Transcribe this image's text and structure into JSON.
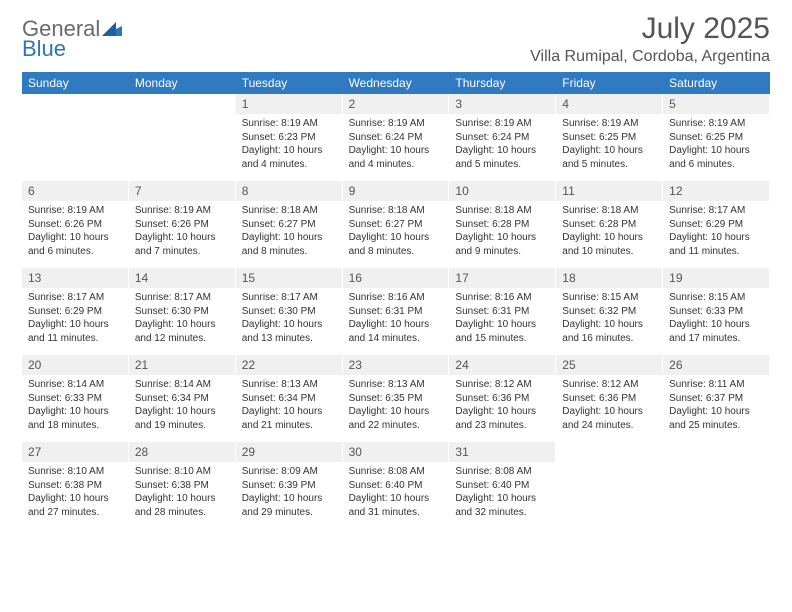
{
  "logo": {
    "general": "General",
    "blue": "Blue"
  },
  "title": "July 2025",
  "location": "Villa Rumipal, Cordoba, Argentina",
  "colors": {
    "header_bg": "#2f7ac0",
    "header_fg": "#ffffff",
    "daynum_bg": "#f0f0f0",
    "daynum_fg": "#555555",
    "text": "#333333",
    "logo_gray": "#6a6a6a",
    "logo_blue": "#2f75b5",
    "page_bg": "#ffffff"
  },
  "day_names": [
    "Sunday",
    "Monday",
    "Tuesday",
    "Wednesday",
    "Thursday",
    "Friday",
    "Saturday"
  ],
  "weeks": [
    [
      {
        "n": "",
        "sunrise": "",
        "sunset": "",
        "daylight": ""
      },
      {
        "n": "",
        "sunrise": "",
        "sunset": "",
        "daylight": ""
      },
      {
        "n": "1",
        "sunrise": "Sunrise: 8:19 AM",
        "sunset": "Sunset: 6:23 PM",
        "daylight": "Daylight: 10 hours and 4 minutes."
      },
      {
        "n": "2",
        "sunrise": "Sunrise: 8:19 AM",
        "sunset": "Sunset: 6:24 PM",
        "daylight": "Daylight: 10 hours and 4 minutes."
      },
      {
        "n": "3",
        "sunrise": "Sunrise: 8:19 AM",
        "sunset": "Sunset: 6:24 PM",
        "daylight": "Daylight: 10 hours and 5 minutes."
      },
      {
        "n": "4",
        "sunrise": "Sunrise: 8:19 AM",
        "sunset": "Sunset: 6:25 PM",
        "daylight": "Daylight: 10 hours and 5 minutes."
      },
      {
        "n": "5",
        "sunrise": "Sunrise: 8:19 AM",
        "sunset": "Sunset: 6:25 PM",
        "daylight": "Daylight: 10 hours and 6 minutes."
      }
    ],
    [
      {
        "n": "6",
        "sunrise": "Sunrise: 8:19 AM",
        "sunset": "Sunset: 6:26 PM",
        "daylight": "Daylight: 10 hours and 6 minutes."
      },
      {
        "n": "7",
        "sunrise": "Sunrise: 8:19 AM",
        "sunset": "Sunset: 6:26 PM",
        "daylight": "Daylight: 10 hours and 7 minutes."
      },
      {
        "n": "8",
        "sunrise": "Sunrise: 8:18 AM",
        "sunset": "Sunset: 6:27 PM",
        "daylight": "Daylight: 10 hours and 8 minutes."
      },
      {
        "n": "9",
        "sunrise": "Sunrise: 8:18 AM",
        "sunset": "Sunset: 6:27 PM",
        "daylight": "Daylight: 10 hours and 8 minutes."
      },
      {
        "n": "10",
        "sunrise": "Sunrise: 8:18 AM",
        "sunset": "Sunset: 6:28 PM",
        "daylight": "Daylight: 10 hours and 9 minutes."
      },
      {
        "n": "11",
        "sunrise": "Sunrise: 8:18 AM",
        "sunset": "Sunset: 6:28 PM",
        "daylight": "Daylight: 10 hours and 10 minutes."
      },
      {
        "n": "12",
        "sunrise": "Sunrise: 8:17 AM",
        "sunset": "Sunset: 6:29 PM",
        "daylight": "Daylight: 10 hours and 11 minutes."
      }
    ],
    [
      {
        "n": "13",
        "sunrise": "Sunrise: 8:17 AM",
        "sunset": "Sunset: 6:29 PM",
        "daylight": "Daylight: 10 hours and 11 minutes."
      },
      {
        "n": "14",
        "sunrise": "Sunrise: 8:17 AM",
        "sunset": "Sunset: 6:30 PM",
        "daylight": "Daylight: 10 hours and 12 minutes."
      },
      {
        "n": "15",
        "sunrise": "Sunrise: 8:17 AM",
        "sunset": "Sunset: 6:30 PM",
        "daylight": "Daylight: 10 hours and 13 minutes."
      },
      {
        "n": "16",
        "sunrise": "Sunrise: 8:16 AM",
        "sunset": "Sunset: 6:31 PM",
        "daylight": "Daylight: 10 hours and 14 minutes."
      },
      {
        "n": "17",
        "sunrise": "Sunrise: 8:16 AM",
        "sunset": "Sunset: 6:31 PM",
        "daylight": "Daylight: 10 hours and 15 minutes."
      },
      {
        "n": "18",
        "sunrise": "Sunrise: 8:15 AM",
        "sunset": "Sunset: 6:32 PM",
        "daylight": "Daylight: 10 hours and 16 minutes."
      },
      {
        "n": "19",
        "sunrise": "Sunrise: 8:15 AM",
        "sunset": "Sunset: 6:33 PM",
        "daylight": "Daylight: 10 hours and 17 minutes."
      }
    ],
    [
      {
        "n": "20",
        "sunrise": "Sunrise: 8:14 AM",
        "sunset": "Sunset: 6:33 PM",
        "daylight": "Daylight: 10 hours and 18 minutes."
      },
      {
        "n": "21",
        "sunrise": "Sunrise: 8:14 AM",
        "sunset": "Sunset: 6:34 PM",
        "daylight": "Daylight: 10 hours and 19 minutes."
      },
      {
        "n": "22",
        "sunrise": "Sunrise: 8:13 AM",
        "sunset": "Sunset: 6:34 PM",
        "daylight": "Daylight: 10 hours and 21 minutes."
      },
      {
        "n": "23",
        "sunrise": "Sunrise: 8:13 AM",
        "sunset": "Sunset: 6:35 PM",
        "daylight": "Daylight: 10 hours and 22 minutes."
      },
      {
        "n": "24",
        "sunrise": "Sunrise: 8:12 AM",
        "sunset": "Sunset: 6:36 PM",
        "daylight": "Daylight: 10 hours and 23 minutes."
      },
      {
        "n": "25",
        "sunrise": "Sunrise: 8:12 AM",
        "sunset": "Sunset: 6:36 PM",
        "daylight": "Daylight: 10 hours and 24 minutes."
      },
      {
        "n": "26",
        "sunrise": "Sunrise: 8:11 AM",
        "sunset": "Sunset: 6:37 PM",
        "daylight": "Daylight: 10 hours and 25 minutes."
      }
    ],
    [
      {
        "n": "27",
        "sunrise": "Sunrise: 8:10 AM",
        "sunset": "Sunset: 6:38 PM",
        "daylight": "Daylight: 10 hours and 27 minutes."
      },
      {
        "n": "28",
        "sunrise": "Sunrise: 8:10 AM",
        "sunset": "Sunset: 6:38 PM",
        "daylight": "Daylight: 10 hours and 28 minutes."
      },
      {
        "n": "29",
        "sunrise": "Sunrise: 8:09 AM",
        "sunset": "Sunset: 6:39 PM",
        "daylight": "Daylight: 10 hours and 29 minutes."
      },
      {
        "n": "30",
        "sunrise": "Sunrise: 8:08 AM",
        "sunset": "Sunset: 6:40 PM",
        "daylight": "Daylight: 10 hours and 31 minutes."
      },
      {
        "n": "31",
        "sunrise": "Sunrise: 8:08 AM",
        "sunset": "Sunset: 6:40 PM",
        "daylight": "Daylight: 10 hours and 32 minutes."
      },
      {
        "n": "",
        "sunrise": "",
        "sunset": "",
        "daylight": ""
      },
      {
        "n": "",
        "sunrise": "",
        "sunset": "",
        "daylight": ""
      }
    ]
  ]
}
